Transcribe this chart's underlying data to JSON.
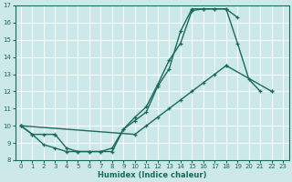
{
  "xlabel": "Humidex (Indice chaleur)",
  "bg_color": "#cce8e8",
  "grid_color": "#ffffff",
  "line_color": "#1a6b5a",
  "xlim": [
    -0.5,
    23.5
  ],
  "ylim": [
    8,
    17
  ],
  "xticks": [
    0,
    1,
    2,
    3,
    4,
    5,
    6,
    7,
    8,
    9,
    10,
    11,
    12,
    13,
    14,
    15,
    16,
    17,
    18,
    19,
    20,
    21,
    22,
    23
  ],
  "yticks": [
    8,
    9,
    10,
    11,
    12,
    13,
    14,
    15,
    16,
    17
  ],
  "curve1_x": [
    0,
    1,
    2,
    3,
    4,
    5,
    6,
    7,
    8,
    9,
    10,
    11,
    12,
    13,
    14,
    15,
    16,
    17,
    18,
    19
  ],
  "curve1_y": [
    10.0,
    9.5,
    8.9,
    8.7,
    8.5,
    8.5,
    8.5,
    8.5,
    8.5,
    9.8,
    10.5,
    11.1,
    12.4,
    13.8,
    14.8,
    16.7,
    16.8,
    16.8,
    16.8,
    16.3
  ],
  "curve2_segs": [
    {
      "x": [
        0,
        1,
        2,
        3
      ],
      "y": [
        10.0,
        9.5,
        9.5,
        9.5
      ]
    },
    {
      "x": [
        3,
        4,
        5,
        6,
        7,
        8,
        9,
        10,
        11,
        12,
        13,
        14,
        15,
        16,
        17,
        18,
        19,
        20,
        21
      ],
      "y": [
        9.5,
        8.7,
        8.5,
        8.5,
        8.5,
        8.7,
        9.8,
        10.3,
        10.8,
        12.3,
        13.3,
        15.5,
        16.8,
        16.8,
        16.8,
        16.8,
        14.8,
        12.7,
        12.0
      ]
    }
  ],
  "curve3_x": [
    0,
    1,
    2,
    3,
    4,
    5,
    6,
    7,
    8,
    9,
    10,
    11,
    12,
    13,
    14,
    15,
    16,
    17,
    18,
    19,
    20,
    21,
    22,
    23
  ],
  "curve3_y": [
    10.0,
    null,
    null,
    null,
    null,
    null,
    null,
    null,
    null,
    null,
    9.5,
    10.0,
    10.5,
    11.0,
    11.5,
    12.0,
    12.5,
    13.0,
    13.5,
    null,
    null,
    null,
    12.0,
    null
  ]
}
